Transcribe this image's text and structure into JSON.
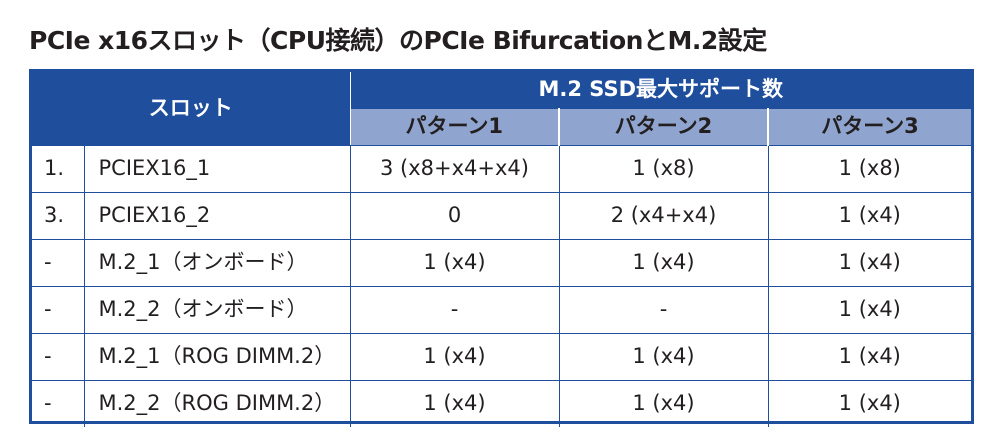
{
  "title": "PCIe x16スロット（CPU接続）のPCIe BifurcationとM.2設定",
  "table": {
    "slot_header": "スロット",
    "support_header": "M.2 SSD最大サポート数",
    "patterns": [
      "パターン1",
      "パターン2",
      "パターン3"
    ],
    "rows": [
      {
        "num": "1.",
        "slot": "PCIEX16_1",
        "values": [
          "3 (x8+x4+x4)",
          "1 (x8)",
          "1 (x8)"
        ]
      },
      {
        "num": "3.",
        "slot": "PCIEX16_2",
        "values": [
          "0",
          "2 (x4+x4)",
          "1 (x4)"
        ]
      },
      {
        "num": "-",
        "slot": "M.2_1（オンボード）",
        "values": [
          "1 (x4)",
          "1 (x4)",
          "1 (x4)"
        ]
      },
      {
        "num": "-",
        "slot": "M.2_2（オンボード）",
        "values": [
          "-",
          "-",
          "1 (x4)"
        ]
      },
      {
        "num": "-",
        "slot": "M.2_1（ROG DIMM.2）",
        "values": [
          "1 (x4)",
          "1 (x4)",
          "1 (x4)"
        ]
      },
      {
        "num": "-",
        "slot": "M.2_2（ROG DIMM.2）",
        "values": [
          "1 (x4)",
          "1 (x4)",
          "1 (x4)"
        ]
      }
    ]
  },
  "colors": {
    "header_blue": "#1f4f9c",
    "subheader_blue": "#8fa4cf",
    "text": "#231f20"
  }
}
